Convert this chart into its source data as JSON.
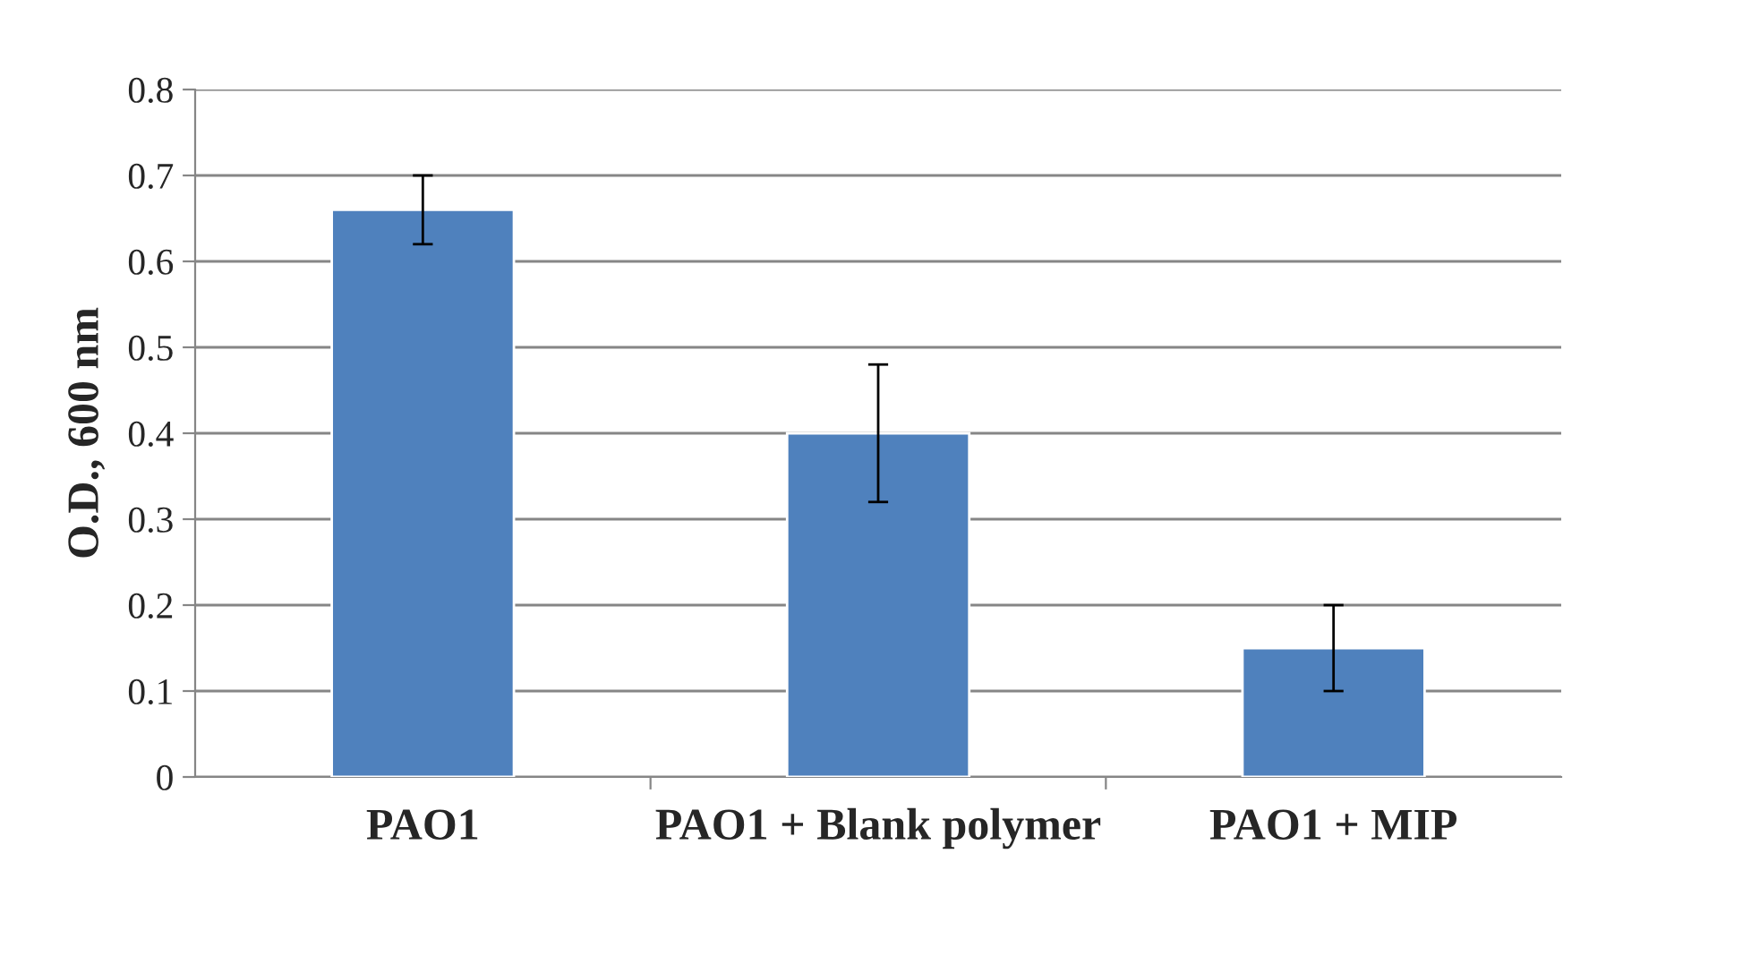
{
  "chart_data": {
    "type": "bar",
    "ylabel": "O.D., 600 nm",
    "categories": [
      "PAO1",
      "PAO1 + Blank polymer",
      "PAO1 + MIP"
    ],
    "values": [
      0.66,
      0.4,
      0.15
    ],
    "errors": [
      0.04,
      0.08,
      0.05
    ],
    "color": "#4f81bd",
    "ylim": [
      0,
      0.8
    ],
    "yticks": [
      0,
      0.1,
      0.2,
      0.3,
      0.4,
      0.5,
      0.6,
      0.7,
      0.8
    ],
    "grid": "y"
  }
}
